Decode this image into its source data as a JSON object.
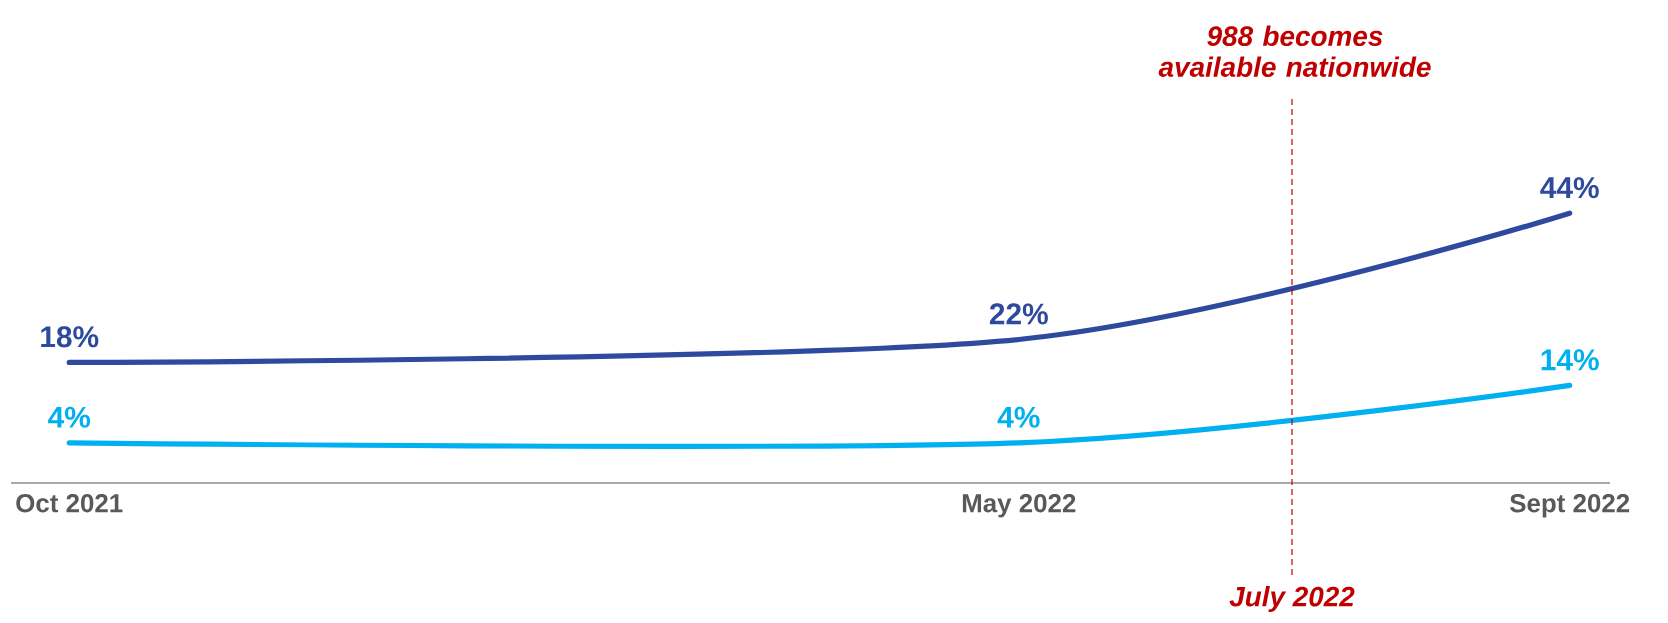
{
  "chart_data": {
    "type": "line",
    "x": [
      "2021-10",
      "2022-05",
      "2022-09"
    ],
    "xlim": [
      "2021-09-18",
      "2022-09-10"
    ],
    "xticks": [
      {
        "value": "2021-10",
        "label": "Oct 2021"
      },
      {
        "value": "2022-05",
        "label": "May 2022"
      },
      {
        "value": "2022-09",
        "label": "Sept 2022"
      }
    ],
    "tick_labels": "x",
    "series": [
      {
        "color": "#2e4a9e",
        "values": [
          18,
          22,
          44
        ],
        "value_labels": [
          "18%",
          "22%",
          "44%"
        ]
      },
      {
        "color": "#00b0f0",
        "values": [
          4,
          4,
          14
        ],
        "value_labels": [
          "4%",
          "4%",
          "14%"
        ]
      }
    ],
    "ref_lines": [
      {
        "axis": "x",
        "value": "2022-07",
        "label": "July 2022",
        "color": "#c00000",
        "line_style": "dashed"
      }
    ],
    "annotations": [
      "988 becomes available nationwide"
    ]
  }
}
